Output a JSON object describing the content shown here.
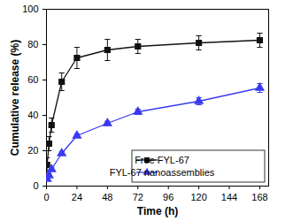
{
  "chart_data": {
    "type": "line",
    "x_label": "Time (h)",
    "y_label": "Cumulative release (%)",
    "x": [
      0.5,
      2,
      4,
      12,
      24,
      48,
      72,
      120,
      168
    ],
    "series": [
      {
        "name": "Free FYL-67",
        "color": "#111111",
        "marker": "square",
        "line_style": "solid",
        "values": [
          12,
          24,
          34.5,
          59,
          72.5,
          77,
          79,
          81,
          82.5
        ],
        "error": [
          4,
          4,
          4,
          5,
          6,
          6,
          4,
          4,
          4
        ]
      },
      {
        "name": "FYL-67 nanoassemblies",
        "color": "#3a3af0",
        "marker": "triangle",
        "line_style": "solid",
        "values": [
          4,
          6,
          9.5,
          18.5,
          28.5,
          35.5,
          42,
          48,
          55.5
        ],
        "error": [
          1,
          1,
          1,
          1,
          1,
          1.2,
          1.5,
          2,
          2.5
        ]
      }
    ],
    "xlim": [
      0,
      175
    ],
    "xticks": [
      0,
      24,
      48,
      72,
      96,
      120,
      144,
      168
    ],
    "ylim": [
      0,
      100
    ],
    "yticks": [
      0,
      20,
      40,
      60,
      80,
      100
    ],
    "grid": false,
    "legend": "lower right"
  }
}
